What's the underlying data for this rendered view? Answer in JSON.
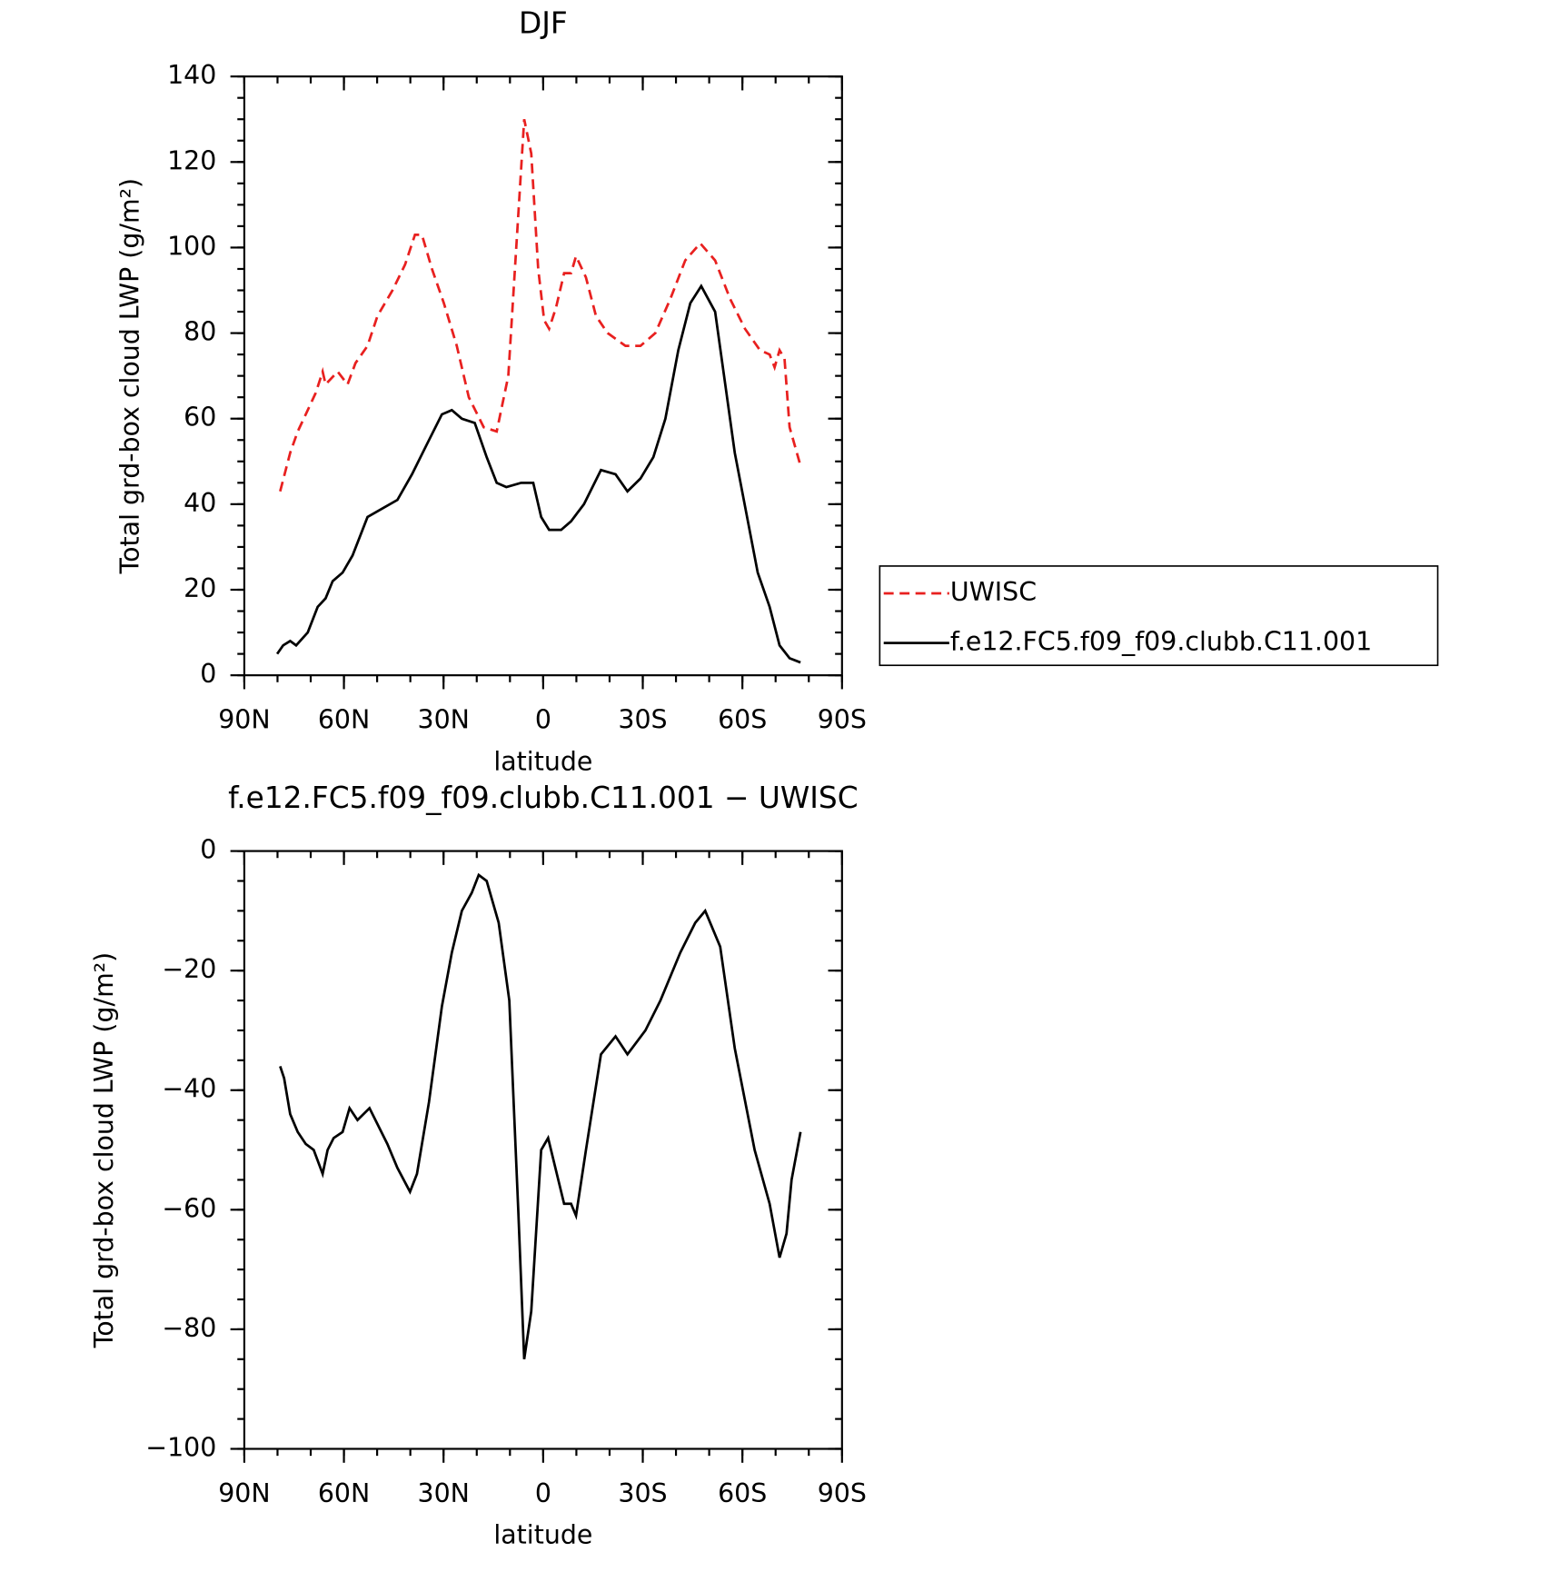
{
  "chart_data": [
    {
      "type": "line",
      "title": "DJF",
      "xlabel": "latitude",
      "ylabel": "Total grd-box cloud LWP (g/m²)",
      "xlim": [
        90,
        -90
      ],
      "xticks": [
        {
          "value": 90,
          "label": "90N"
        },
        {
          "value": 60,
          "label": "60N"
        },
        {
          "value": 30,
          "label": "30N"
        },
        0,
        {
          "value": -30,
          "label": "30S"
        },
        {
          "value": -60,
          "label": "60S"
        },
        {
          "value": -90,
          "label": "90S"
        }
      ],
      "ylim": [
        0,
        140
      ],
      "yticks": [
        0,
        20,
        40,
        60,
        80,
        100,
        120,
        140
      ],
      "grid": false,
      "legend": "right",
      "series": [
        {
          "name": "UWISC",
          "color": "#e8201f",
          "style": "dashed",
          "x": [
            79.2,
            76.2,
            73.9,
            70.9,
            68.5,
            66.4,
            65.5,
            61.9,
            58.9,
            56.5,
            52.9,
            49.9,
            45.4,
            41.6,
            38.6,
            36.5,
            33.5,
            29.9,
            26.0,
            22.4,
            17.9,
            14.0,
            10.5,
            8.1,
            5.7,
            3.6,
            1.5,
            -0.3,
            -1.8,
            -3.9,
            -6.3,
            -8.4,
            -9.9,
            -12.9,
            -15.9,
            -19.4,
            -24.8,
            -29.3,
            -33.8,
            -38.3,
            -42.8,
            -47.3,
            -51.8,
            -56.3,
            -60.8,
            -65.3,
            -68.2,
            -69.7,
            -71.2,
            -72.7,
            -74.2,
            -77.5
          ],
          "values": [
            43,
            52,
            57,
            62,
            66,
            71,
            68,
            71,
            68,
            73,
            77,
            84,
            90,
            96,
            103,
            103,
            95,
            87,
            77,
            65,
            58,
            57,
            70,
            100,
            130,
            122,
            95,
            83,
            81,
            86,
            94,
            94,
            98,
            93,
            84,
            80,
            77,
            77,
            80,
            88,
            97,
            101,
            97,
            88,
            81,
            76,
            75,
            72,
            76,
            74,
            58,
            49
          ]
        },
        {
          "name": "f.e12.FC5.f09_f09.clubb.C11.001",
          "color": "#000000",
          "style": "solid",
          "x": [
            80.1,
            78.3,
            76.2,
            74.4,
            70.9,
            67.9,
            65.5,
            63.4,
            60.4,
            57.4,
            52.9,
            48.4,
            43.9,
            39.5,
            35.0,
            30.5,
            27.5,
            24.5,
            20.6,
            17.0,
            14.0,
            11.1,
            6.6,
            3.0,
            0.6,
            -1.8,
            -5.4,
            -8.4,
            -12.3,
            -17.4,
            -21.8,
            -25.4,
            -29.3,
            -33.2,
            -36.8,
            -40.7,
            -44.3,
            -47.6,
            -51.8,
            -57.7,
            -64.6,
            -68.2,
            -71.2,
            -74.2,
            -77.5
          ],
          "values": [
            5,
            7,
            8,
            7,
            10,
            16,
            18,
            22,
            24,
            28,
            37,
            39,
            41,
            47,
            54,
            61,
            62,
            60,
            59,
            51,
            45,
            44,
            45,
            45,
            37,
            34,
            34,
            36,
            40,
            48,
            47,
            43,
            46,
            51,
            60,
            76,
            87,
            91,
            85,
            52,
            24,
            16,
            7,
            4,
            3
          ]
        }
      ]
    },
    {
      "type": "line",
      "title": "f.e12.FC5.f09_f09.clubb.C11.001 − UWISC",
      "xlabel": "latitude",
      "ylabel": "Total grd-box cloud LWP (g/m²)",
      "xlim": [
        90,
        -90
      ],
      "xticks": [
        {
          "value": 90,
          "label": "90N"
        },
        {
          "value": 60,
          "label": "60N"
        },
        {
          "value": 30,
          "label": "30N"
        },
        0,
        {
          "value": -30,
          "label": "30S"
        },
        {
          "value": -60,
          "label": "60S"
        },
        {
          "value": -90,
          "label": "90S"
        }
      ],
      "ylim": [
        -100,
        0
      ],
      "yticks": [
        {
          "value": -100,
          "label": "−100"
        },
        {
          "value": -80,
          "label": "−80"
        },
        {
          "value": -60,
          "label": "−60"
        },
        {
          "value": -40,
          "label": "−40"
        },
        {
          "value": -20,
          "label": "−20"
        },
        0
      ],
      "grid": false,
      "series": [
        {
          "color": "#000000",
          "style": "solid",
          "x": [
            79.2,
            78.0,
            76.2,
            73.9,
            71.5,
            69.1,
            66.4,
            64.9,
            63.1,
            60.4,
            58.3,
            55.9,
            52.3,
            46.9,
            43.9,
            40.1,
            38.0,
            34.4,
            30.5,
            27.5,
            24.5,
            21.5,
            19.4,
            17.0,
            13.4,
            10.2,
            7.5,
            5.7,
            3.6,
            0.6,
            -1.5,
            -6.3,
            -8.4,
            -9.9,
            -12.9,
            -17.4,
            -21.8,
            -25.4,
            -30.8,
            -35.3,
            -41.3,
            -45.8,
            -48.8,
            -53.3,
            -57.7,
            -63.7,
            -68.2,
            -71.2,
            -73.3,
            -74.8,
            -77.5
          ],
          "values": [
            -36,
            -38,
            -44,
            -47,
            -49,
            -50,
            -54,
            -50,
            -48,
            -47,
            -43,
            -45,
            -43,
            -49,
            -53,
            -57,
            -54,
            -42,
            -26,
            -17,
            -10,
            -7,
            -4,
            -5,
            -12,
            -25,
            -60,
            -85,
            -77,
            -50,
            -48,
            -59,
            -59,
            -61,
            -50,
            -34,
            -31,
            -34,
            -30,
            -25,
            -17,
            -12,
            -10,
            -16,
            -33,
            -50,
            -59,
            -68,
            -64,
            -55,
            -47
          ]
        }
      ]
    }
  ]
}
